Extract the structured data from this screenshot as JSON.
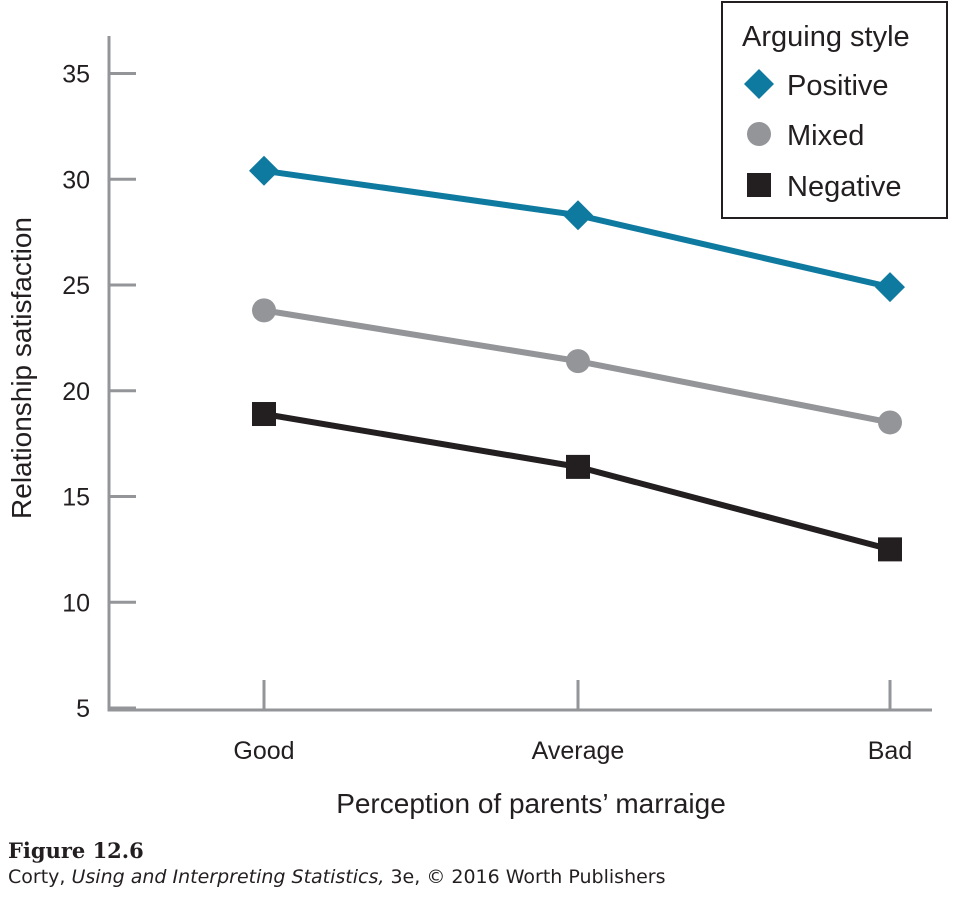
{
  "chart_data": {
    "type": "line",
    "title": "",
    "xlabel": "Perception of parents’ marraige",
    "ylabel": "Relationship satisfaction",
    "categories": [
      "Good",
      "Average",
      "Bad"
    ],
    "ylim": [
      5,
      37
    ],
    "yticks": [
      5,
      10,
      15,
      20,
      25,
      30,
      35
    ],
    "grid": false,
    "legend": {
      "title": "Arguing style",
      "placement": "top-right"
    },
    "series": [
      {
        "name": "Positive",
        "values": [
          30.4,
          28.3,
          24.9
        ],
        "color": "#0f7aa0",
        "marker": "diamond"
      },
      {
        "name": "Mixed",
        "values": [
          23.8,
          21.4,
          18.5
        ],
        "color": "#939598",
        "marker": "circle"
      },
      {
        "name": "Negative",
        "values": [
          18.9,
          16.4,
          12.5
        ],
        "color": "#231f20",
        "marker": "square"
      }
    ]
  },
  "caption": {
    "figure_label": "Figure 12.6",
    "author": "Corty, ",
    "book_title": "Using and Interpreting Statistics,",
    "edition_publisher": " 3e, © 2016 Worth Publishers"
  },
  "colors": {
    "axis": "#939598",
    "text": "#231f20"
  }
}
